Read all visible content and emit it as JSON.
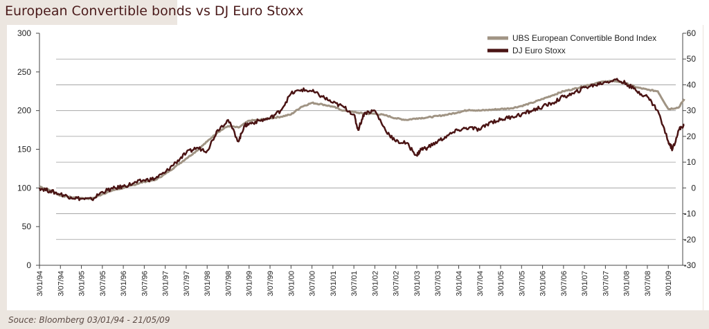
{
  "title": {
    "main": "European Convertible bonds",
    "suffix": "vs DJ Euro Stoxx"
  },
  "source": "Souce: Bloomberg 03/01/94 - 21/05/09",
  "colors": {
    "ubs": "#a09484",
    "stoxx": "#4a1414",
    "grid": "#9a9a9a",
    "title_shade": "#ece6e0"
  },
  "chart_data": {
    "type": "line",
    "x_tick_labels": [
      "3/01/94",
      "3/07/94",
      "3/01/95",
      "3/07/95",
      "3/01/96",
      "3/07/96",
      "3/01/97",
      "3/07/97",
      "3/01/98",
      "3/07/98",
      "3/01/99",
      "3/07/99",
      "3/01/00",
      "3/07/00",
      "3/01/01",
      "3/07/01",
      "3/01/02",
      "3/07/02",
      "3/01/03",
      "3/07/03",
      "3/01/04",
      "3/07/04",
      "3/01/05",
      "3/07/05",
      "3/01/06",
      "3/07/06",
      "3/01/07",
      "3/07/07",
      "3/01/08",
      "3/07/08",
      "3/01/09"
    ],
    "y_left": {
      "ticks": [
        0,
        50,
        100,
        150,
        200,
        250,
        300
      ],
      "lim": [
        0,
        300
      ]
    },
    "y_right": {
      "ticks": [
        -30,
        -20,
        -10,
        0,
        10,
        20,
        30,
        40,
        50,
        60
      ],
      "lim": [
        -30,
        60
      ]
    },
    "grid_right_values": [
      -30,
      -20,
      -10,
      0,
      10,
      20,
      30,
      40,
      50,
      60
    ],
    "grid": true,
    "legend_position": "top-right",
    "series": [
      {
        "name": "UBS European Convertible Bond Index",
        "axis": "left",
        "x": [
          0,
          0.25,
          0.5,
          0.75,
          1,
          1.25,
          1.5,
          1.75,
          2,
          2.25,
          2.5,
          2.75,
          3,
          3.25,
          3.5,
          3.75,
          4,
          4.25,
          4.5,
          4.75,
          5,
          5.25,
          5.5,
          5.75,
          6,
          6.25,
          6.5,
          6.75,
          7,
          7.25,
          7.5,
          7.75,
          8,
          8.25,
          8.5,
          8.75,
          9,
          9.25,
          9.5,
          9.75,
          10,
          10.25,
          10.5,
          10.75,
          11,
          11.25,
          11.5,
          11.75,
          12,
          12.25,
          12.5,
          12.75,
          13,
          13.25,
          13.5,
          13.75,
          14,
          14.25,
          14.5,
          14.75,
          15,
          15.25,
          15.38
        ],
        "y": [
          102,
          97,
          90,
          88,
          87,
          86,
          92,
          97,
          100,
          104,
          108,
          110,
          118,
          128,
          138,
          148,
          160,
          172,
          180,
          178,
          187,
          188,
          190,
          192,
          195,
          205,
          210,
          208,
          205,
          200,
          198,
          196,
          196,
          194,
          190,
          188,
          190,
          191,
          193,
          195,
          198,
          201,
          200,
          201,
          202,
          203,
          206,
          210,
          215,
          220,
          225,
          228,
          232,
          235,
          238,
          238,
          235,
          230,
          227,
          225,
          202,
          204,
          215
        ],
        "x_unit": "years since 3/01/94"
      },
      {
        "name": "DJ Euro Stoxx",
        "axis": "left",
        "x": [
          0,
          0.25,
          0.5,
          0.75,
          1,
          1.25,
          1.5,
          1.75,
          2,
          2.25,
          2.5,
          2.75,
          3,
          3.25,
          3.5,
          3.75,
          4,
          4.25,
          4.5,
          4.75,
          4.88,
          5,
          5.25,
          5.5,
          5.75,
          6,
          6.25,
          6.5,
          6.75,
          7,
          7.25,
          7.5,
          7.6,
          7.75,
          8,
          8.25,
          8.5,
          8.75,
          9,
          9.1,
          9.25,
          9.5,
          9.75,
          10,
          10.25,
          10.5,
          10.75,
          11,
          11.25,
          11.5,
          11.75,
          12,
          12.25,
          12.5,
          12.75,
          13,
          13.25,
          13.5,
          13.75,
          14,
          14.25,
          14.5,
          14.75,
          15,
          15.1,
          15.25,
          15.38
        ],
        "y": [
          100,
          96,
          92,
          88,
          86,
          85,
          95,
          99,
          102,
          106,
          110,
          112,
          120,
          133,
          145,
          152,
          148,
          175,
          188,
          160,
          180,
          183,
          187,
          190,
          200,
          222,
          227,
          225,
          218,
          210,
          205,
          195,
          175,
          197,
          200,
          175,
          160,
          158,
          142,
          150,
          152,
          160,
          168,
          175,
          178,
          175,
          185,
          188,
          192,
          195,
          200,
          205,
          210,
          218,
          222,
          230,
          233,
          237,
          240,
          235,
          225,
          218,
          200,
          160,
          150,
          175,
          182
        ],
        "x_unit": "years since 3/01/94"
      }
    ]
  }
}
